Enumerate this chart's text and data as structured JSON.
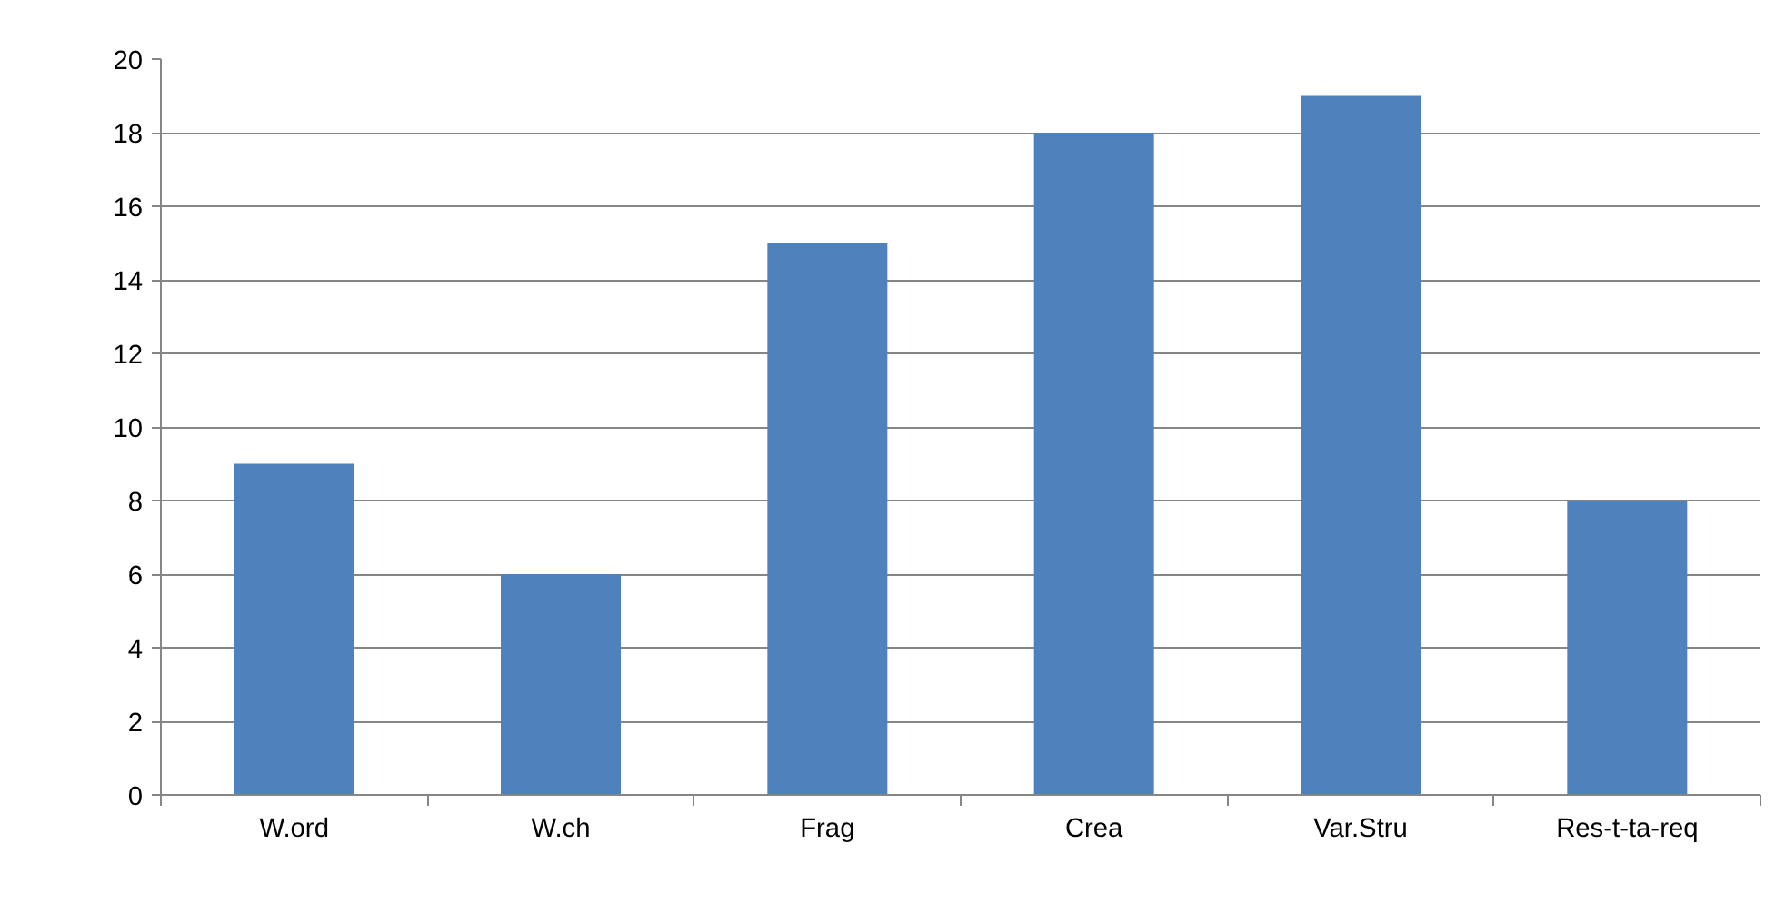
{
  "chart_data": {
    "type": "bar",
    "categories": [
      "W.ord",
      "W.ch",
      "Frag",
      "Crea",
      "Var.Stru",
      "Res-t-ta-req"
    ],
    "values": [
      9,
      6,
      15,
      18,
      19,
      8
    ],
    "color": "#4f81bd",
    "ylim": [
      0,
      20
    ],
    "yticks": [
      0,
      2,
      4,
      6,
      8,
      10,
      12,
      14,
      16,
      18,
      20
    ],
    "grid": "y"
  }
}
